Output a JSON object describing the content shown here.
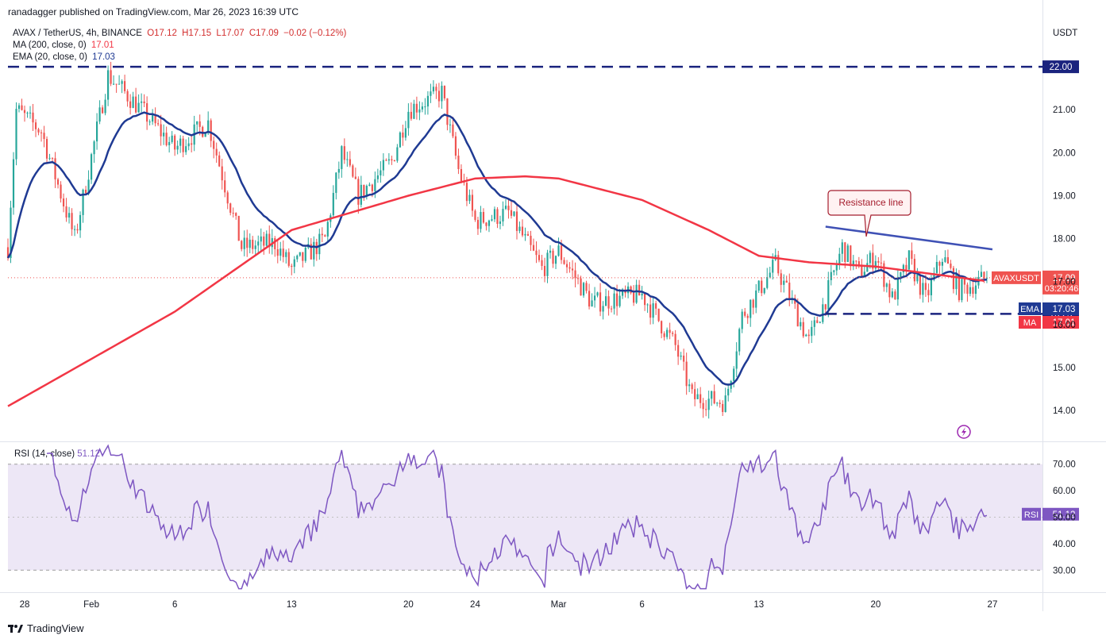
{
  "header": {
    "publisher": "ranadagger published on TradingView.com, Mar 26, 2023 16:39 UTC",
    "symbol": "AVAX / TetherUS, 4h, BINANCE",
    "open": "O17.12",
    "high": "H17.15",
    "low": "L17.07",
    "close": "C17.09",
    "change": "−0.02 (−0.12%)",
    "ma_label": "MA (200, close, 0)",
    "ma_value": "17.01",
    "ema_label": "EMA (20, close, 0)",
    "ema_value": "17.03",
    "rsi_label": "RSI (14, close)",
    "rsi_value": "51.12"
  },
  "colors": {
    "up": "#26a69a",
    "down": "#ef5350",
    "ma": "#f23645",
    "ema": "#1f3a93",
    "rsi": "#7e57c2",
    "rsi_band": "#ede7f6",
    "level_line": "#1a237e",
    "resistance": "#3f51b5"
  },
  "chart_data": [
    {
      "type": "candlestick",
      "title": "AVAX / TetherUS, 4h, BINANCE",
      "currency": "USDT",
      "ylim": [
        13.3,
        23.0
      ],
      "y_ticks": [
        14.0,
        15.0,
        16.0,
        17.0,
        18.0,
        19.0,
        20.0,
        21.0,
        22.0
      ],
      "x_tick_labels": [
        "28",
        "Feb",
        "6",
        "13",
        "20",
        "24",
        "Mar",
        "6",
        "13",
        "20",
        "27"
      ],
      "support_levels": [
        22.0,
        16.25
      ],
      "annotation": "Resistance line",
      "resistance_line": {
        "start": [
          "Mar 17",
          18.28
        ],
        "end": [
          "Mar 27",
          17.75
        ]
      },
      "last_price": {
        "symbol": "AVAXUSDT",
        "value": "17.09",
        "countdown": "03:20:46"
      },
      "ema_tag": {
        "label": "EMA",
        "value": "17.03"
      },
      "ma_tag": {
        "label": "MA",
        "value": "17.01"
      },
      "level_tags": [
        "22.00",
        "16.25"
      ],
      "path_keypoints": [
        [
          "Jan 27",
          17.8
        ],
        [
          "Jan 27 12h",
          21.0
        ],
        [
          "Jan 29",
          20.5
        ],
        [
          "Jan 31",
          18.0
        ],
        [
          "Feb 2",
          21.8
        ],
        [
          "Feb 4",
          21.0
        ],
        [
          "Feb 6",
          20.1
        ],
        [
          "Feb 8",
          20.7
        ],
        [
          "Feb 10",
          17.8
        ],
        [
          "Feb 12",
          17.9
        ],
        [
          "Feb 13",
          17.3
        ],
        [
          "Feb 15",
          18.0
        ],
        [
          "Feb 16",
          20.0
        ],
        [
          "Feb 17",
          19.0
        ],
        [
          "Feb 19",
          19.8
        ],
        [
          "Feb 20",
          21.0
        ],
        [
          "Feb 22",
          21.4
        ],
        [
          "Feb 23",
          19.6
        ],
        [
          "Feb 24",
          18.4
        ],
        [
          "Feb 26",
          18.6
        ],
        [
          "Feb 28",
          17.3
        ],
        [
          "Mar 1",
          17.7
        ],
        [
          "Mar 2",
          17.1
        ],
        [
          "Mar 3",
          16.5
        ],
        [
          "Mar 6",
          16.7
        ],
        [
          "Mar 8",
          15.5
        ],
        [
          "Mar 9",
          14.3
        ],
        [
          "Mar 11",
          14.2
        ],
        [
          "Mar 12",
          16.2
        ],
        [
          "Mar 14",
          17.4
        ],
        [
          "Mar 16",
          15.6
        ],
        [
          "Mar 17",
          16.6
        ],
        [
          "Mar 18",
          17.8
        ],
        [
          "Mar 19",
          17.2
        ],
        [
          "Mar 20",
          17.6
        ],
        [
          "Mar 21",
          16.6
        ],
        [
          "Mar 22",
          17.5
        ],
        [
          "Mar 23",
          16.6
        ],
        [
          "Mar 24",
          17.6
        ],
        [
          "Mar 25",
          16.8
        ],
        [
          "Mar 26 16h",
          17.09
        ]
      ],
      "ma200_keypoints": [
        [
          "Jan 27",
          14.1
        ],
        [
          "Feb 6",
          16.3
        ],
        [
          "Feb 13",
          18.2
        ],
        [
          "Feb 20",
          19.0
        ],
        [
          "Feb 24",
          19.4
        ],
        [
          "Feb 27",
          19.45
        ],
        [
          "Mar 1",
          19.4
        ],
        [
          "Mar 6",
          18.9
        ],
        [
          "Mar 10",
          18.2
        ],
        [
          "Mar 13",
          17.6
        ],
        [
          "Mar 16",
          17.45
        ],
        [
          "Mar 20",
          17.35
        ],
        [
          "Mar 26 16h",
          17.01
        ]
      ]
    },
    {
      "type": "line",
      "title": "RSI (14, close)",
      "ylim": [
        22,
        78
      ],
      "y_ticks": [
        30.0,
        40.0,
        50.0,
        60.0,
        70.0
      ],
      "overbought": 70,
      "oversold": 30,
      "last_value": "51.12",
      "tag_label": "RSI"
    }
  ],
  "footer": {
    "brand": "TradingView"
  }
}
